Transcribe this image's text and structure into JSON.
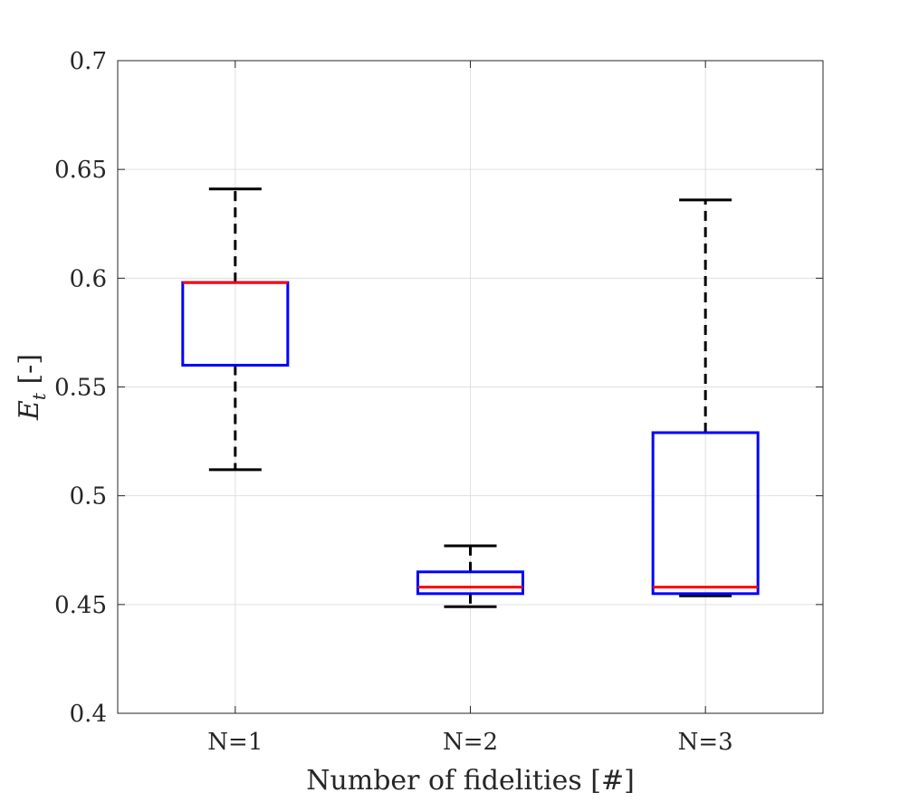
{
  "chart_data": {
    "type": "boxplot",
    "title": "",
    "xlabel": "Number of fidelities [#]",
    "ylabel": {
      "symbol": "E",
      "subscript": "t",
      "unit": " [-]"
    },
    "categories": [
      "N=1",
      "N=2",
      "N=3"
    ],
    "ylim": [
      0.4,
      0.7
    ],
    "yticks": [
      0.4,
      0.45,
      0.5,
      0.55,
      0.6,
      0.65,
      0.7
    ],
    "ytick_labels": [
      "0.4",
      "0.45",
      "0.5",
      "0.55",
      "0.6",
      "0.65",
      "0.7"
    ],
    "grid": true,
    "boxes": [
      {
        "category": "N=1",
        "whisker_low": 0.512,
        "q1": 0.56,
        "median": 0.598,
        "q3": 0.598,
        "whisker_high": 0.641
      },
      {
        "category": "N=2",
        "whisker_low": 0.449,
        "q1": 0.455,
        "median": 0.458,
        "q3": 0.465,
        "whisker_high": 0.477
      },
      {
        "category": "N=3",
        "whisker_low": 0.454,
        "q1": 0.455,
        "median": 0.458,
        "q3": 0.529,
        "whisker_high": 0.636
      }
    ],
    "colors": {
      "box": "#0000ff",
      "median": "#ff0000",
      "whisker": "#000000",
      "grid": "#e0e0e0",
      "axis": "#262626"
    }
  }
}
